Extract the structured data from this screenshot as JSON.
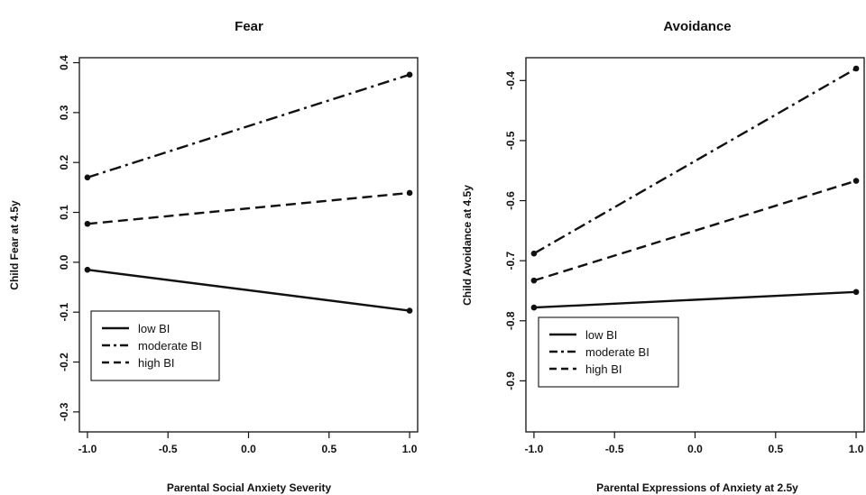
{
  "chart_data": [
    {
      "type": "line",
      "title": "Fear",
      "xlabel": "Parental Social Anxiety Severity",
      "ylabel": "Child Fear at 4.5y",
      "x": [
        -1.0,
        1.0
      ],
      "xlim": [
        -1.05,
        1.05
      ],
      "ylim": [
        -0.34,
        0.41
      ],
      "xticks": [
        "-1.0",
        "-0.5",
        "0.0",
        "0.5",
        "1.0"
      ],
      "xtick_values": [
        -1.0,
        -0.5,
        0.0,
        0.5,
        1.0
      ],
      "yticks": [
        "-0.3",
        "-0.2",
        "-0.1",
        "0.0",
        "0.1",
        "0.2",
        "0.3",
        "0.4"
      ],
      "ytick_values": [
        -0.3,
        -0.2,
        -0.1,
        0.0,
        0.1,
        0.2,
        0.3,
        0.4
      ],
      "legend_position": "bottom-left",
      "series": [
        {
          "name": "low BI",
          "style": "solid",
          "values": [
            -0.015,
            -0.097
          ]
        },
        {
          "name": "moderate BI",
          "style": "dashdot",
          "values": [
            0.17,
            0.376
          ]
        },
        {
          "name": "high BI",
          "style": "dashed",
          "values": [
            0.077,
            0.139
          ]
        }
      ]
    },
    {
      "type": "line",
      "title": "Avoidance",
      "xlabel": "Parental Expressions of Anxiety at 2.5y",
      "ylabel": "Child Avoidance at 4.5y",
      "x": [
        -1.0,
        1.0
      ],
      "xlim": [
        -1.05,
        1.05
      ],
      "ylim": [
        -0.985,
        -0.362
      ],
      "xticks": [
        "-1.0",
        "-0.5",
        "0.0",
        "0.5",
        "1.0"
      ],
      "xtick_values": [
        -1.0,
        -0.5,
        0.0,
        0.5,
        1.0
      ],
      "yticks": [
        "-0.9",
        "-0.8",
        "-0.7",
        "-0.6",
        "-0.5",
        "-0.4"
      ],
      "ytick_values": [
        -0.9,
        -0.8,
        -0.7,
        -0.6,
        -0.5,
        -0.4
      ],
      "legend_position": "bottom-left",
      "series": [
        {
          "name": "low BI",
          "style": "solid",
          "values": [
            -0.778,
            -0.752
          ]
        },
        {
          "name": "moderate BI",
          "style": "dashdot",
          "values": [
            -0.688,
            -0.38
          ]
        },
        {
          "name": "high BI",
          "style": "dashed",
          "values": [
            -0.733,
            -0.567
          ]
        }
      ]
    }
  ]
}
